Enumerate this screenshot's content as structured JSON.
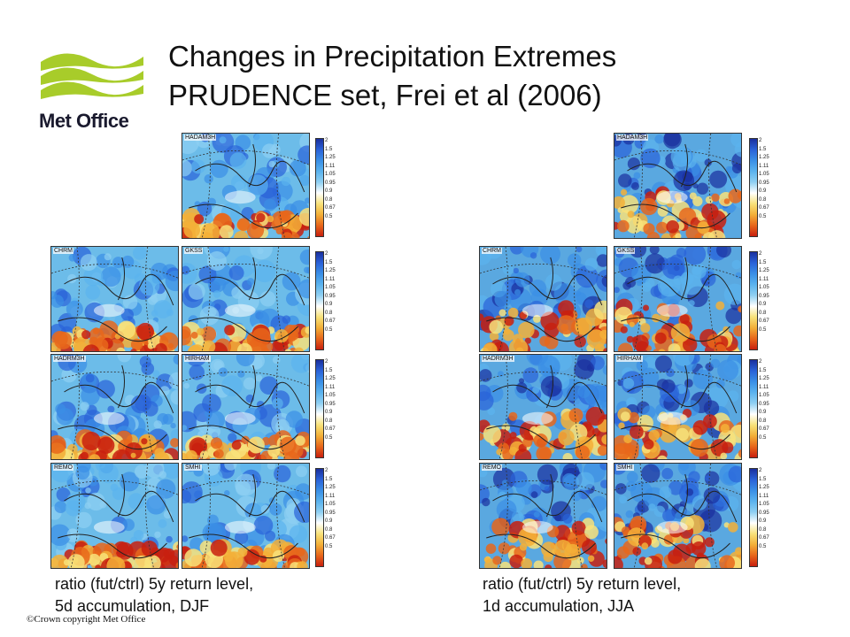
{
  "logo": {
    "text": "Met Office"
  },
  "title": {
    "line1": "Changes in Precipitation Extremes",
    "line2": "PRUDENCE set, Frei et al (2006)"
  },
  "colorbar_ticks": [
    "2",
    "1.5",
    "1.25",
    "1.11",
    "1.05",
    "0.95",
    "0.9",
    "0.8",
    "0.67",
    "0.5"
  ],
  "colors": {
    "ramp": [
      "#1a2f9e",
      "#2a62d8",
      "#3a8fe6",
      "#5bb3ee",
      "#8fd0f2",
      "#ffffff",
      "#f8e27a",
      "#f3b038",
      "#e8671b",
      "#c8200f"
    ]
  },
  "left": {
    "models": [
      "HADAM3H",
      "CHRM",
      "GKSS",
      "HADRM3H",
      "HIRHAM",
      "REMO",
      "SMHI"
    ],
    "caption_line1": "ratio (fut/ctrl) 5y return level,",
    "caption_line2": "5d accumulation,  DJF"
  },
  "right": {
    "models": [
      "HADAM3H",
      "CHRM",
      "GKSS",
      "HADRM3H",
      "HIRHAM",
      "REMO",
      "SMHI"
    ],
    "caption_line1": "ratio (fut/ctrl) 5y return level,",
    "caption_line2": "1d accumulation,  JJA"
  },
  "copyright": "©Crown copyright   Met Office"
}
